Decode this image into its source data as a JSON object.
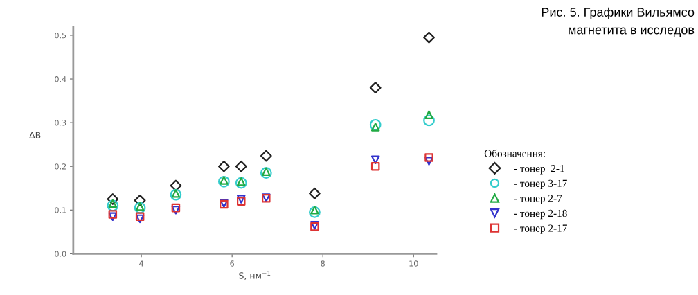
{
  "chart_data": {
    "type": "scatter",
    "xlabel": "S, нм$^{−1}$",
    "ylabel": "ΔB",
    "legend_title": "Обозначення:",
    "legend": "right",
    "grid": false,
    "x": [
      3.37,
      3.97,
      4.76,
      5.82,
      6.2,
      6.75,
      7.82,
      9.16,
      10.34
    ],
    "xlim": [
      2.5,
      10.5
    ],
    "xticks": [
      4,
      6,
      8,
      10
    ],
    "ylim": [
      0,
      0.52
    ],
    "yticks": [
      {
        "value": 0,
        "label": "0.0"
      },
      0.1,
      0.2,
      0.3,
      0.4,
      0.5
    ],
    "series": [
      {
        "name": "- тонер  2-1",
        "color": "#222222",
        "marker": "diamond",
        "values": [
          0.125,
          0.122,
          0.156,
          0.2,
          0.2,
          0.224,
          0.138,
          0.38,
          0.495
        ]
      },
      {
        "name": "- тонер 3-17",
        "color": "#33cccc",
        "marker": "circle",
        "values": [
          0.11,
          0.105,
          0.135,
          0.165,
          0.162,
          0.185,
          0.095,
          0.295,
          0.305
        ]
      },
      {
        "name": "- тонер 2-7",
        "color": "#22aa44",
        "marker": "triangle",
        "values": [
          0.115,
          0.108,
          0.138,
          0.168,
          0.165,
          0.188,
          0.1,
          0.29,
          0.318
        ]
      },
      {
        "name": "- тонер 2-18",
        "color": "#3333cc",
        "marker": "triangle_down",
        "values": [
          0.085,
          0.08,
          0.1,
          0.115,
          0.125,
          0.128,
          0.065,
          0.215,
          0.212
        ]
      },
      {
        "name": "- тонер 2-17",
        "color": "#dd3333",
        "marker": "square",
        "values": [
          0.09,
          0.085,
          0.105,
          0.113,
          0.12,
          0.127,
          0.062,
          0.2,
          0.22
        ]
      }
    ],
    "annotations": [
      "Рис. 5. Графики Вильямсо",
      "магнетита в исследов"
    ]
  }
}
